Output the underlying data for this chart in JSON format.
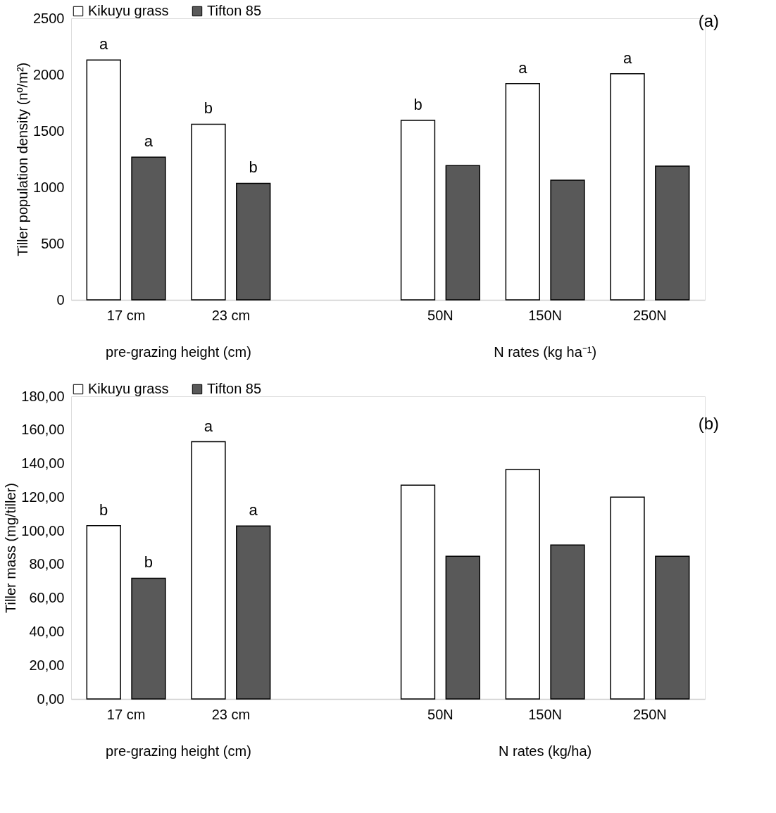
{
  "chart_data": [
    {
      "type": "bar",
      "ylabel": "Tiller population density (nº/m²)",
      "categories": [
        "17 cm",
        "23 cm",
        null,
        "50N",
        "150N",
        "250N"
      ],
      "ylim": [
        0,
        2500
      ],
      "yticks": [
        0,
        500,
        1000,
        1500,
        2000,
        2500
      ],
      "grid": false,
      "legend": "top",
      "series": [
        {
          "name": "Kikuyu grass",
          "color": "#ffffff",
          "values": [
            2130,
            1560,
            null,
            1593,
            1921,
            2008
          ],
          "value_labels": [
            "a",
            "b",
            null,
            "b",
            "a",
            "a"
          ]
        },
        {
          "name": "Tifton 85",
          "color": "#595959",
          "values": [
            1267,
            1035,
            null,
            1192,
            1062,
            1188
          ],
          "value_labels": [
            "a",
            "b",
            null,
            null,
            null,
            null
          ]
        }
      ],
      "annotations": [
        "pre-grazing height (cm)",
        "N rates (kg ha⁻¹)",
        "(a)"
      ]
    },
    {
      "type": "bar",
      "ylabel": "Tiller mass (mg/tiller)",
      "categories": [
        "17 cm",
        "23 cm",
        null,
        "50N",
        "150N",
        "250N"
      ],
      "ylim": [
        0,
        180
      ],
      "grid": false,
      "legend": "top",
      "yticks": [
        {
          "value": 0,
          "label": "0,00"
        },
        {
          "value": 20,
          "label": "20,00"
        },
        {
          "value": 40,
          "label": "40,00"
        },
        {
          "value": 60,
          "label": "60,00"
        },
        {
          "value": 80,
          "label": "80,00"
        },
        {
          "value": 100,
          "label": "100,00"
        },
        {
          "value": 120,
          "label": "120,00"
        },
        {
          "value": 140,
          "label": "140,00"
        },
        {
          "value": 160,
          "label": "160,00"
        },
        {
          "value": 180,
          "label": "180,00"
        }
      ],
      "series": [
        {
          "name": "Kikuyu grass",
          "color": "#ffffff",
          "values": [
            103.1,
            153.0,
            null,
            127.2,
            136.5,
            120.0
          ],
          "value_labels": [
            "b",
            "a",
            null,
            null,
            null,
            null
          ]
        },
        {
          "name": "Tifton 85",
          "color": "#595959",
          "values": [
            71.8,
            102.9,
            null,
            84.9,
            91.6,
            84.9
          ],
          "value_labels": [
            "b",
            "a",
            null,
            null,
            null,
            null
          ]
        }
      ],
      "annotations": [
        "pre-grazing height (cm)",
        "N rates (kg/ha)",
        "(b)"
      ]
    }
  ]
}
